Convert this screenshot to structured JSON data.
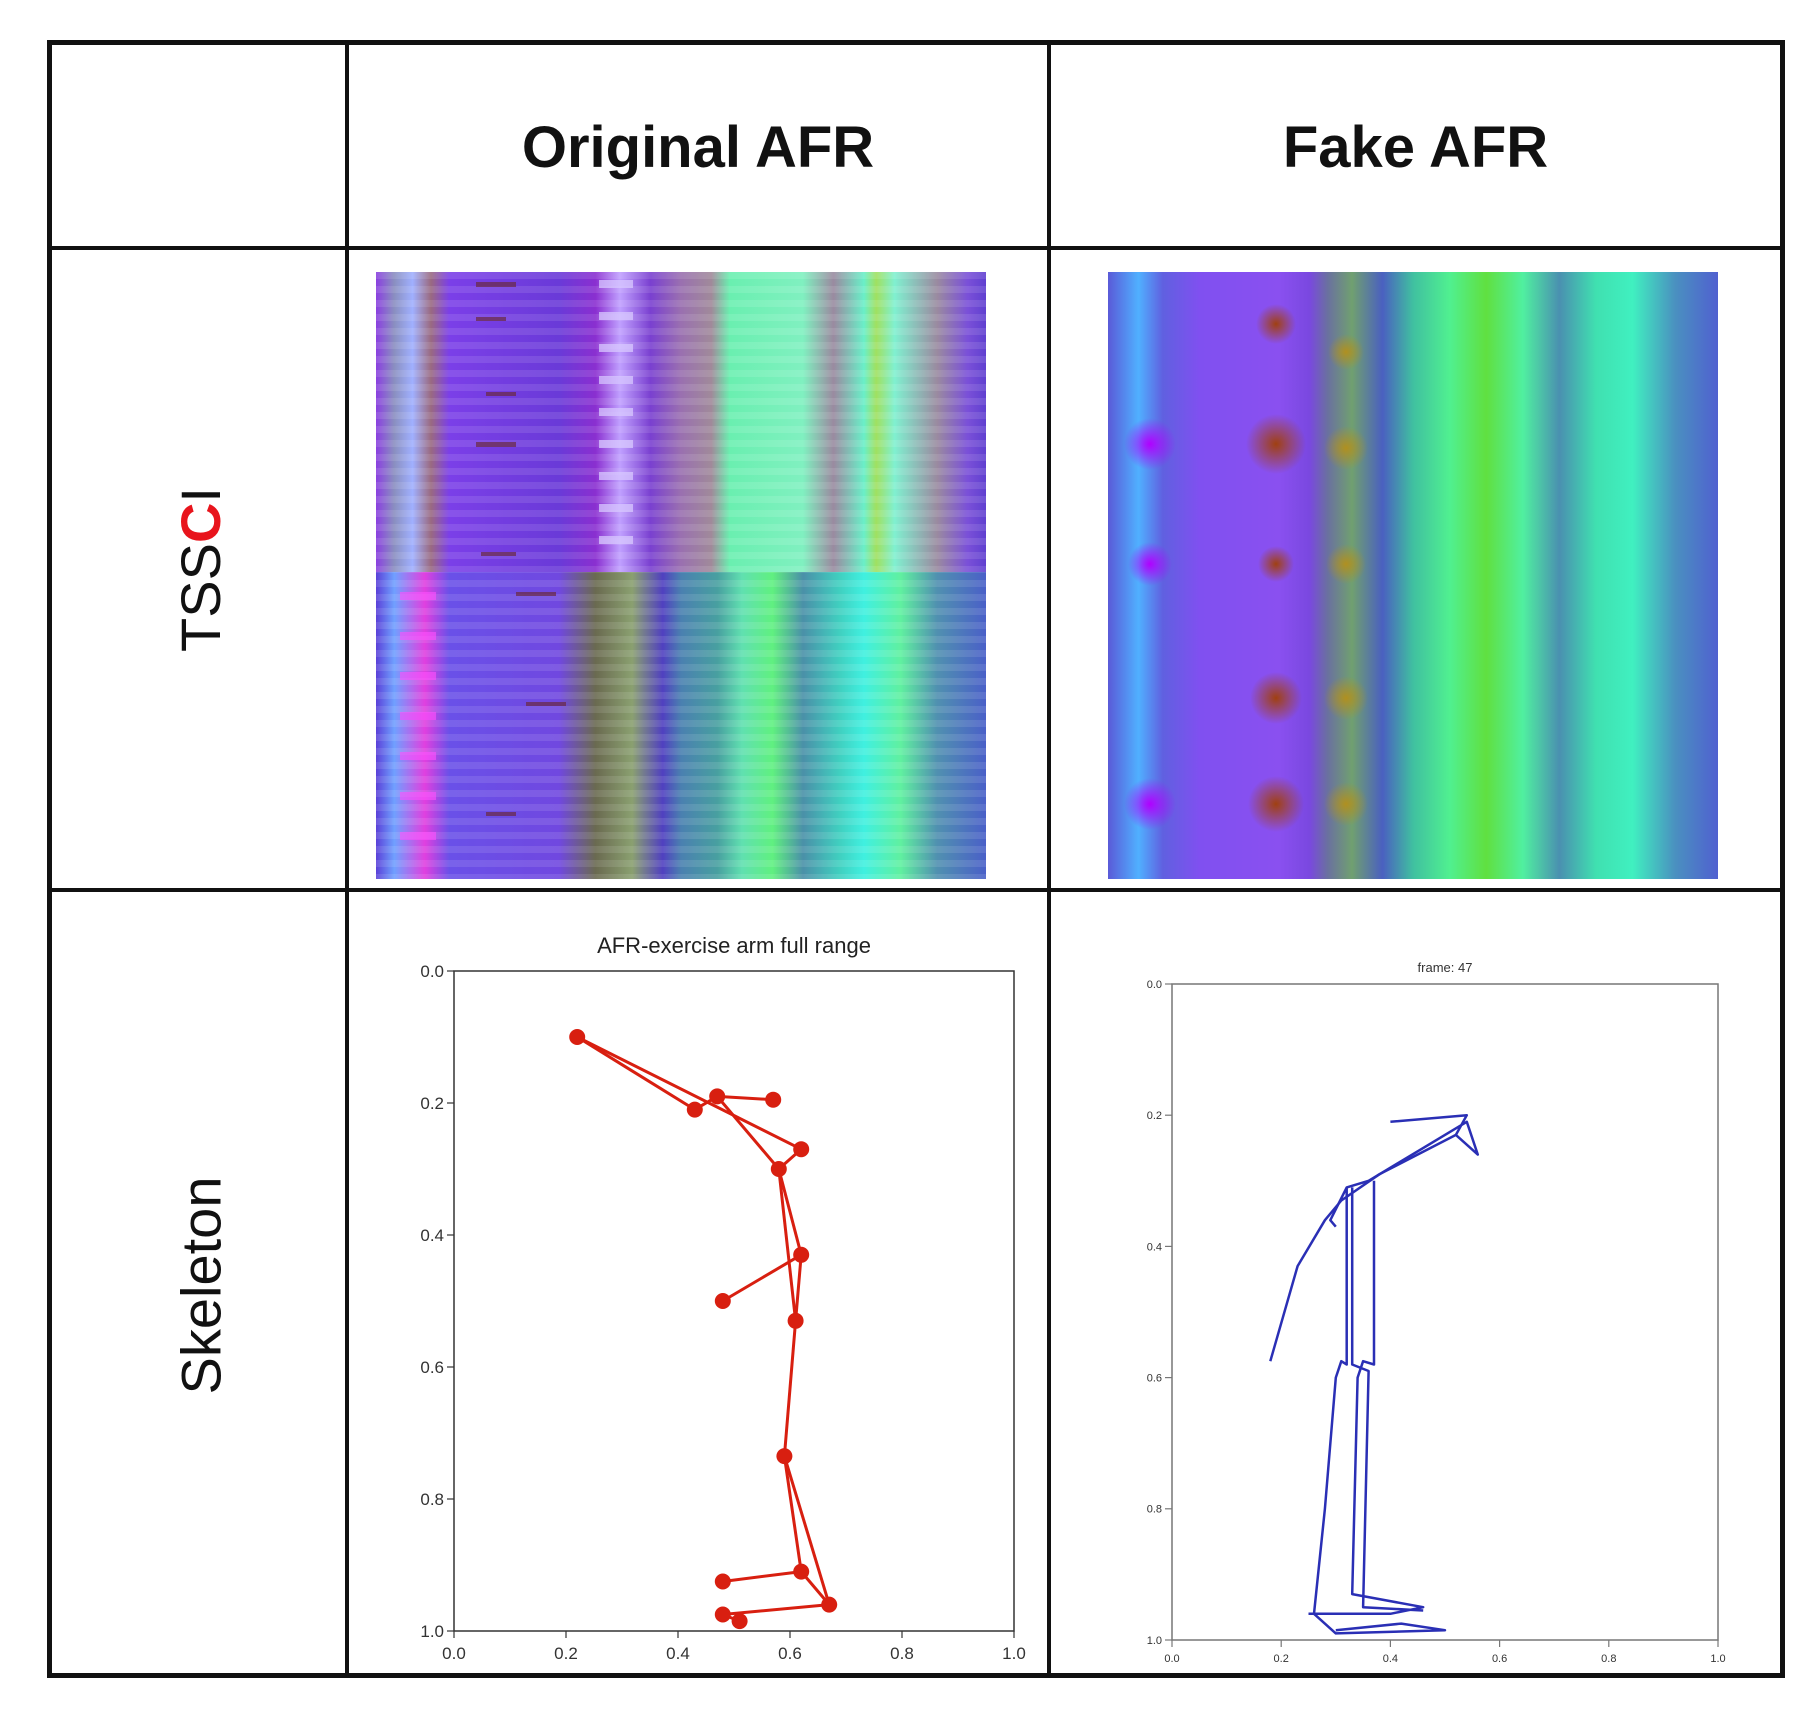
{
  "header": {
    "col1": "Original AFR",
    "col2": "Fake AFR"
  },
  "rows": {
    "tssci_prefix": "TSS",
    "tssci_highlight": "C",
    "tssci_suffix": "I",
    "skeleton": "Skeleton"
  },
  "colors": {
    "highlight": "#e8141c",
    "original_skeleton": "#d81f10",
    "fake_skeleton": "#2a2fb5"
  },
  "chart_data": [
    {
      "type": "line",
      "title": "AFR-exercise arm full range",
      "xlim": [
        0.0,
        1.0
      ],
      "ylim": [
        1.0,
        0.0
      ],
      "xticks": [
        "0.0",
        "0.2",
        "0.4",
        "0.6",
        "0.8",
        "1.0"
      ],
      "yticks": [
        "0.0",
        "0.2",
        "0.4",
        "0.6",
        "0.8",
        "1.0"
      ],
      "joints": [
        {
          "x": 0.22,
          "y": 0.1
        },
        {
          "x": 0.43,
          "y": 0.21
        },
        {
          "x": 0.47,
          "y": 0.19
        },
        {
          "x": 0.57,
          "y": 0.195
        },
        {
          "x": 0.62,
          "y": 0.27
        },
        {
          "x": 0.58,
          "y": 0.3
        },
        {
          "x": 0.62,
          "y": 0.43
        },
        {
          "x": 0.48,
          "y": 0.5
        },
        {
          "x": 0.61,
          "y": 0.53
        },
        {
          "x": 0.59,
          "y": 0.735
        },
        {
          "x": 0.62,
          "y": 0.91
        },
        {
          "x": 0.48,
          "y": 0.925
        },
        {
          "x": 0.67,
          "y": 0.96
        },
        {
          "x": 0.48,
          "y": 0.975
        },
        {
          "x": 0.51,
          "y": 0.985
        }
      ],
      "segments": [
        [
          0,
          1
        ],
        [
          0,
          4
        ],
        [
          1,
          2
        ],
        [
          2,
          3
        ],
        [
          2,
          5
        ],
        [
          4,
          5
        ],
        [
          5,
          6
        ],
        [
          6,
          7
        ],
        [
          6,
          8
        ],
        [
          5,
          8
        ],
        [
          8,
          9
        ],
        [
          9,
          10
        ],
        [
          10,
          11
        ],
        [
          10,
          12
        ],
        [
          12,
          13
        ],
        [
          13,
          14
        ],
        [
          9,
          12
        ]
      ]
    },
    {
      "type": "line",
      "title": "frame: 47",
      "xlim": [
        0.0,
        1.0
      ],
      "ylim": [
        1.0,
        0.0
      ],
      "xticks": [
        "0.0",
        "0.2",
        "0.4",
        "0.6",
        "0.8",
        "1.0"
      ],
      "yticks": [
        "0.0",
        "0.2",
        "0.4",
        "0.6",
        "0.8",
        "1.0"
      ],
      "paths": [
        [
          [
            0.4,
            0.21
          ],
          [
            0.54,
            0.2
          ],
          [
            0.52,
            0.23
          ],
          [
            0.56,
            0.26
          ],
          [
            0.54,
            0.21
          ],
          [
            0.36,
            0.3
          ],
          [
            0.32,
            0.31
          ],
          [
            0.29,
            0.36
          ],
          [
            0.3,
            0.37
          ]
        ],
        [
          [
            0.52,
            0.23
          ],
          [
            0.38,
            0.29
          ],
          [
            0.31,
            0.33
          ],
          [
            0.28,
            0.36
          ],
          [
            0.23,
            0.43
          ],
          [
            0.18,
            0.575
          ]
        ],
        [
          [
            0.32,
            0.31
          ],
          [
            0.32,
            0.58
          ],
          [
            0.31,
            0.575
          ],
          [
            0.3,
            0.6
          ],
          [
            0.28,
            0.8
          ],
          [
            0.26,
            0.96
          ],
          [
            0.3,
            0.99
          ],
          [
            0.5,
            0.985
          ],
          [
            0.42,
            0.975
          ],
          [
            0.3,
            0.985
          ]
        ],
        [
          [
            0.37,
            0.3
          ],
          [
            0.37,
            0.58
          ],
          [
            0.35,
            0.575
          ],
          [
            0.34,
            0.6
          ],
          [
            0.33,
            0.93
          ],
          [
            0.46,
            0.95
          ],
          [
            0.4,
            0.96
          ],
          [
            0.25,
            0.96
          ]
        ],
        [
          [
            0.33,
            0.31
          ],
          [
            0.33,
            0.58
          ],
          [
            0.36,
            0.59
          ],
          [
            0.35,
            0.95
          ],
          [
            0.46,
            0.955
          ]
        ]
      ]
    }
  ]
}
